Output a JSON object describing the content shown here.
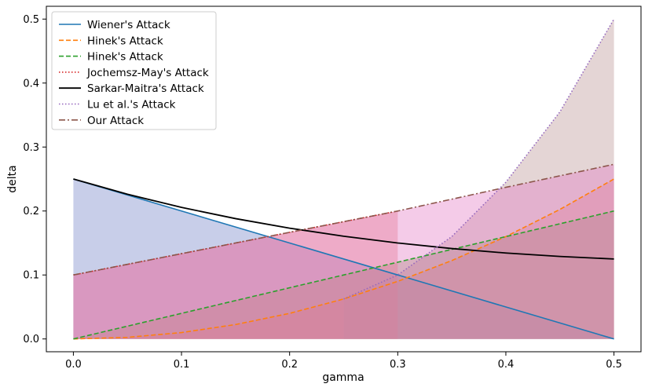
{
  "chart_data": {
    "type": "area",
    "xlabel": "gamma",
    "ylabel": "delta",
    "xlim": [
      -0.025,
      0.525
    ],
    "ylim": [
      -0.02,
      0.52
    ],
    "x_ticks": [
      "0.0",
      "0.1",
      "0.2",
      "0.3",
      "0.4",
      "0.5"
    ],
    "y_ticks": [
      "0.0",
      "0.1",
      "0.2",
      "0.3",
      "0.4",
      "0.5"
    ],
    "legend_position": "top-left",
    "grid": false,
    "series": [
      {
        "name": "Wiener's Attack",
        "color": "#1f77b4",
        "dash": "solid",
        "x": [
          0.0,
          0.5
        ],
        "y": [
          0.25,
          0.0
        ],
        "fill": "#6f7fc4"
      },
      {
        "name": "Hinek's Attack",
        "color": "#ff7f0e",
        "dash": "dashed",
        "x": [
          0.0,
          0.05,
          0.1,
          0.15,
          0.2,
          0.25,
          0.3,
          0.35,
          0.4,
          0.45,
          0.5
        ],
        "y": [
          0.0,
          0.0025,
          0.01,
          0.0225,
          0.04,
          0.0625,
          0.09,
          0.1225,
          0.16,
          0.2025,
          0.25
        ],
        "fill": "#f08080"
      },
      {
        "name": "Hinek's Attack",
        "color": "#2ca02c",
        "dash": "dashed",
        "x": [
          0.0,
          0.5
        ],
        "y": [
          0.0,
          0.2
        ],
        "fill": "#8c8c5a"
      },
      {
        "name": "Jochemsz-May's Attack",
        "color": "#d62728",
        "dash": "dotted",
        "x": [
          0.0,
          0.3
        ],
        "y": [
          0.1,
          0.2
        ],
        "fill": "#e87878"
      },
      {
        "name": "Sarkar-Maitra's Attack",
        "color": "#000000",
        "dash": "solid",
        "x": [
          0.0,
          0.05,
          0.1,
          0.15,
          0.2,
          0.25,
          0.3,
          0.35,
          0.4,
          0.45,
          0.5
        ],
        "y": [
          0.25,
          0.2262,
          0.2056,
          0.1881,
          0.1732,
          0.1606,
          0.15,
          0.1413,
          0.1343,
          0.129,
          0.125
        ],
        "fill": "none"
      },
      {
        "name": "Lu et al.'s Attack",
        "color": "#9467bd",
        "dash": "dotted",
        "x": [
          0.25,
          0.3,
          0.35,
          0.4,
          0.45,
          0.5
        ],
        "y": [
          0.0625,
          0.1,
          0.16,
          0.245,
          0.355,
          0.5
        ],
        "fill": "#b89090"
      },
      {
        "name": "Our Attack",
        "color": "#8c564b",
        "dash": "dashdot",
        "x": [
          0.0,
          0.1,
          0.2,
          0.3,
          0.4,
          0.5
        ],
        "y": [
          0.1,
          0.1333,
          0.1667,
          0.2,
          0.237,
          0.273
        ],
        "fill": "#e377c2"
      }
    ]
  }
}
